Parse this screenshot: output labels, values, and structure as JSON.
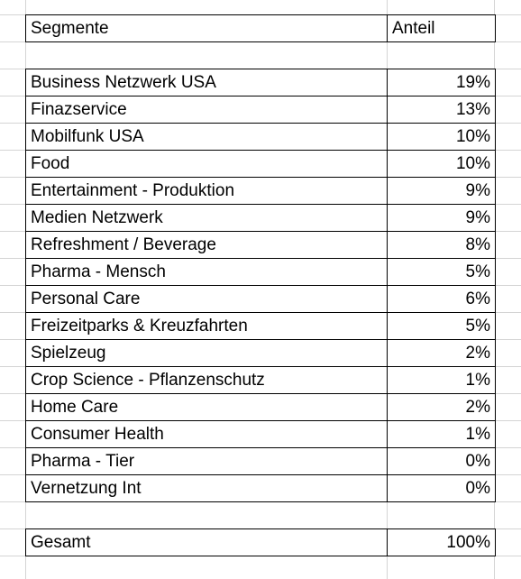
{
  "header": {
    "segment_label": "Segmente",
    "share_label": "Anteil"
  },
  "rows": [
    {
      "segment": "Business Netzwerk USA",
      "share": "19%"
    },
    {
      "segment": "Finazservice",
      "share": "13%"
    },
    {
      "segment": "Mobilfunk USA",
      "share": "10%"
    },
    {
      "segment": "Food",
      "share": "10%"
    },
    {
      "segment": "Entertainment - Produktion",
      "share": "9%"
    },
    {
      "segment": "Medien Netzwerk",
      "share": "9%"
    },
    {
      "segment": "Refreshment / Beverage",
      "share": "8%"
    },
    {
      "segment": "Pharma - Mensch",
      "share": "5%"
    },
    {
      "segment": "Personal Care",
      "share": "6%"
    },
    {
      "segment": "Freizeitparks & Kreuzfahrten",
      "share": "5%"
    },
    {
      "segment": "Spielzeug",
      "share": "2%"
    },
    {
      "segment": "Crop Science - Pflanzenschutz",
      "share": "1%"
    },
    {
      "segment": "Home Care",
      "share": "2%"
    },
    {
      "segment": "Consumer Health",
      "share": "1%"
    },
    {
      "segment": "Pharma - Tier",
      "share": "0%"
    },
    {
      "segment": "Vernetzung Int",
      "share": "0%"
    }
  ],
  "total": {
    "label": "Gesamt",
    "share": "100%"
  },
  "colors": {
    "gridline": "#d4d4d4",
    "border": "#000000"
  }
}
